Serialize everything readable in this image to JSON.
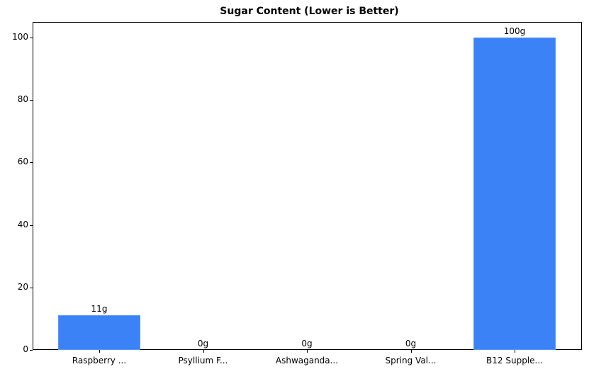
{
  "chart_data": {
    "type": "bar",
    "title": "Sugar Content (Lower is Better)",
    "xlabel": "",
    "ylabel": "",
    "categories": [
      "Raspberry ...",
      "Psyllium F...",
      "Ashwaganda...",
      "Spring Val...",
      "B12 Supple..."
    ],
    "values": [
      11,
      0,
      0,
      0,
      100
    ],
    "value_labels": [
      "11g",
      "0g",
      "0g",
      "0g",
      "100g"
    ],
    "ylim": [
      0,
      105
    ],
    "yticks": [
      0,
      20,
      40,
      60,
      80,
      100
    ],
    "ytick_labels": [
      "0",
      "20",
      "40",
      "60",
      "80",
      "100"
    ],
    "bar_color": "#3b82f6",
    "grid": false,
    "legend": null
  }
}
